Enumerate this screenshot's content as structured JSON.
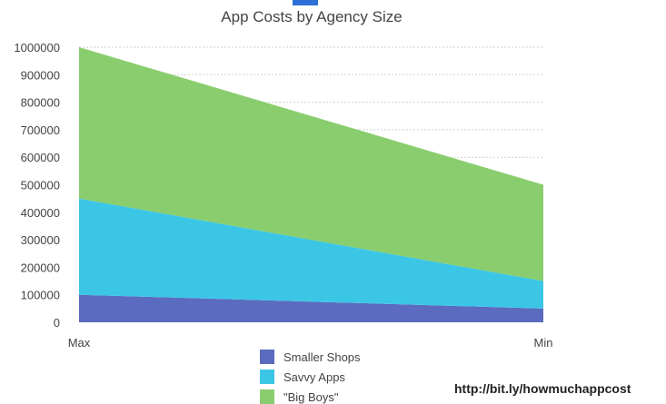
{
  "chart_data": {
    "type": "area",
    "stacked": true,
    "title": "App Costs by Agency Size",
    "categories": [
      "Max",
      "Min"
    ],
    "series": [
      {
        "name": "Smaller Shops",
        "values": [
          100000,
          50000
        ],
        "color": "#5b6bbf"
      },
      {
        "name": "Savvy Apps",
        "values": [
          350000,
          100000
        ],
        "color": "#3cc6e6"
      },
      {
        "name": "\"Big Boys\"",
        "values": [
          550000,
          350000
        ],
        "color": "#8acd6e"
      }
    ],
    "ylim": [
      0,
      1000000
    ],
    "yticks": [
      0,
      100000,
      200000,
      300000,
      400000,
      500000,
      600000,
      700000,
      800000,
      900000,
      1000000
    ],
    "grid": true,
    "legend_position": "bottom-center"
  },
  "footer": {
    "link_text": "http://bit.ly/howmuchappcost"
  },
  "decor": {
    "top_accent_color": "#2c6fd6",
    "gridline_color": "#cfcfcf",
    "text_color": "#444444"
  }
}
